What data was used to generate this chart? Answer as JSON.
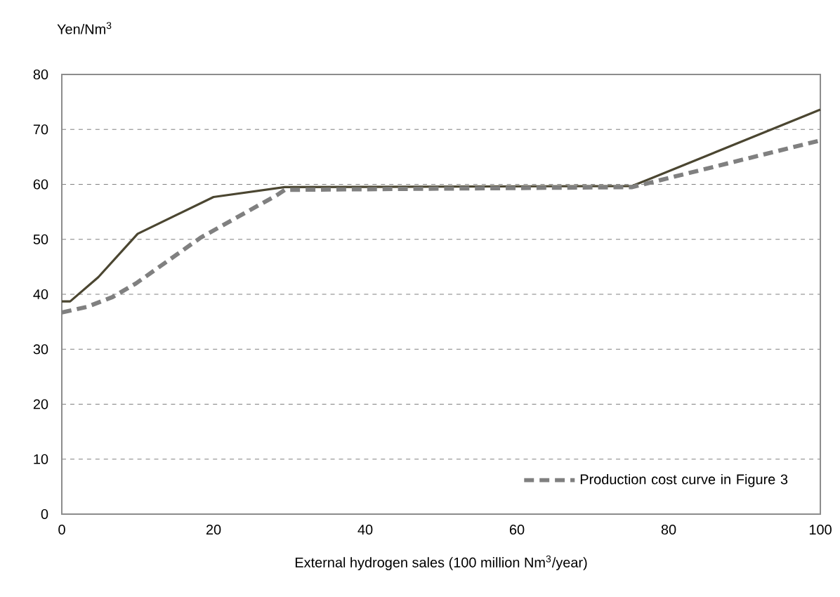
{
  "chart_data": {
    "type": "line",
    "ylabel": "Yen/Nm$^{3}$",
    "xlabel": "External hydrogen sales (100 million Nm$^{3}$/year)",
    "xlim": [
      0,
      100
    ],
    "xticks": [
      0,
      20,
      40,
      60,
      80,
      100
    ],
    "ylim": [
      0,
      80
    ],
    "yticks": [
      0,
      10,
      20,
      30,
      40,
      50,
      60,
      70,
      80
    ],
    "grid": "y",
    "legend": "bottom right",
    "series": [
      {
        "color": "#4b4631",
        "line_style": "solid",
        "x": [
          0,
          1.1,
          4.8,
          10,
          20,
          29.4,
          75.2,
          100
        ],
        "values": [
          38.7,
          38.7,
          43.1,
          51,
          57.7,
          59.5,
          59.7,
          73.6
        ]
      },
      {
        "name": "Production cost curve in Figure 3",
        "color": "#808080",
        "line_style": "dashed",
        "x": [
          0,
          3.3,
          6.7,
          9.8,
          18.3,
          28.3,
          29.4,
          75.2,
          100
        ],
        "values": [
          36.7,
          37.7,
          39.5,
          42,
          50.3,
          58,
          59,
          59.5,
          68
        ]
      }
    ]
  }
}
